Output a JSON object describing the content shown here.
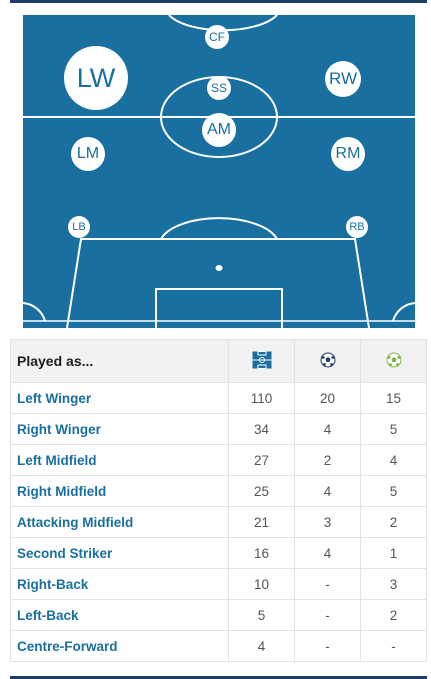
{
  "positions": {
    "cf": "CF",
    "lw": "LW",
    "ss": "SS",
    "rw": "RW",
    "am": "AM",
    "lm": "LM",
    "rm": "RM",
    "lb": "LB",
    "rb": "RB"
  },
  "colors": {
    "pitch": "#1a6fa1",
    "lines": "#ffffff",
    "header_bar": "#1d3c66",
    "link": "#1a6fa1"
  },
  "table": {
    "header": {
      "played_as": "Played as...",
      "col_icons": [
        "pitch-icon",
        "goals-ball-icon",
        "assists-ball-icon"
      ]
    },
    "rows": [
      {
        "position": "Left Winger",
        "apps": "110",
        "goals": "20",
        "assists": "15"
      },
      {
        "position": "Right Winger",
        "apps": "34",
        "goals": "4",
        "assists": "5"
      },
      {
        "position": "Left Midfield",
        "apps": "27",
        "goals": "2",
        "assists": "4"
      },
      {
        "position": "Right Midfield",
        "apps": "25",
        "goals": "4",
        "assists": "5"
      },
      {
        "position": "Attacking Midfield",
        "apps": "21",
        "goals": "3",
        "assists": "2"
      },
      {
        "position": "Second Striker",
        "apps": "16",
        "goals": "4",
        "assists": "1"
      },
      {
        "position": "Right-Back",
        "apps": "10",
        "goals": "-",
        "assists": "3"
      },
      {
        "position": "Left-Back",
        "apps": "5",
        "goals": "-",
        "assists": "2"
      },
      {
        "position": "Centre-Forward",
        "apps": "4",
        "goals": "-",
        "assists": "-"
      }
    ]
  }
}
